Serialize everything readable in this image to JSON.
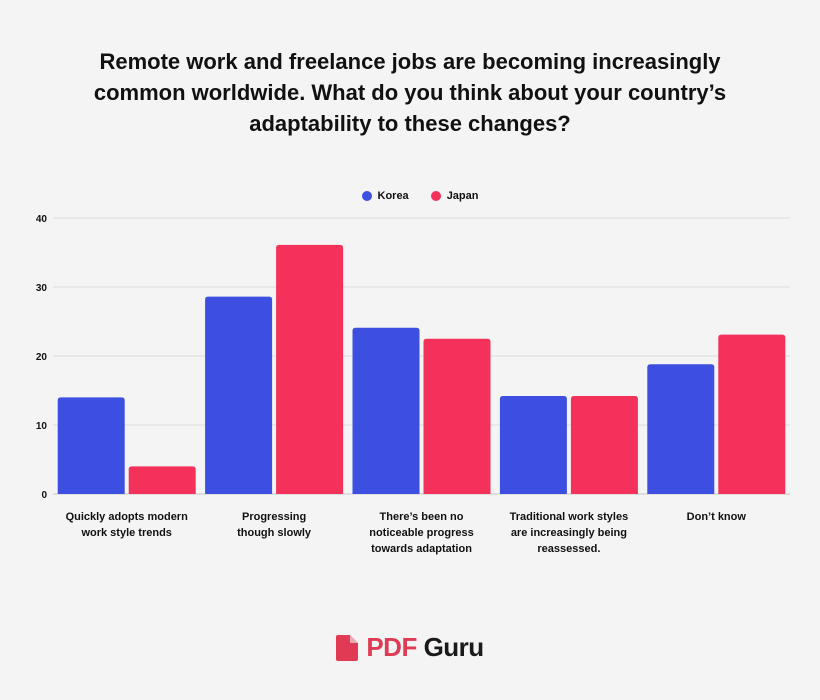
{
  "chart_data": {
    "type": "bar",
    "title": "Remote work and freelance jobs are becoming increasingly common worldwide. What do you think about your country’s adaptability to these changes?",
    "categories": [
      [
        "Quickly adopts modern",
        "work style trends"
      ],
      [
        "Progressing",
        "though slowly"
      ],
      [
        "There’s been no",
        "noticeable progress",
        "towards adaptation"
      ],
      [
        "Traditional work styles",
        "are increasingly being",
        "reassessed."
      ],
      [
        "Don’t know"
      ]
    ],
    "series": [
      {
        "name": "Korea",
        "color": "#3d4fe0",
        "values": [
          14,
          28.6,
          24.1,
          14.2,
          18.8
        ]
      },
      {
        "name": "Japan",
        "color": "#f3315a",
        "values": [
          4,
          36.1,
          22.5,
          14.2,
          23.1
        ]
      }
    ],
    "ylim": [
      0,
      40
    ],
    "yticks": [
      0,
      10,
      20,
      30,
      40
    ],
    "grid": true,
    "legend_position": "top-center"
  },
  "logo": {
    "part1": "PDF",
    "part2": "Guru",
    "icon": "pdf-file-icon"
  }
}
